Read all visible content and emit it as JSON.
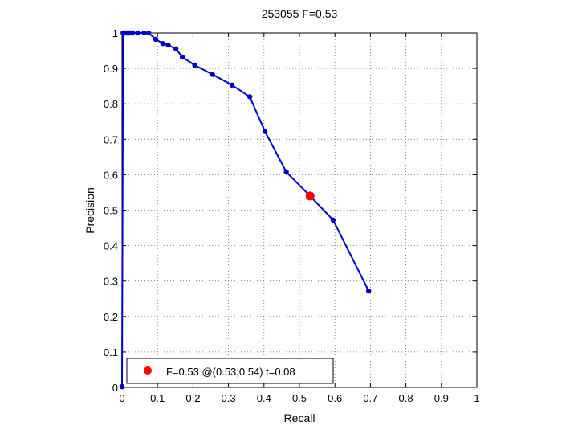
{
  "chart_data": {
    "type": "line",
    "title": "253055 F=0.53",
    "xlabel": "Recall",
    "ylabel": "Precision",
    "xlim": [
      0,
      1
    ],
    "ylim": [
      0,
      1
    ],
    "xticks": [
      "0",
      "0.1",
      "0.2",
      "0.3",
      "0.4",
      "0.5",
      "0.6",
      "0.7",
      "0.8",
      "0.9",
      "1"
    ],
    "yticks": [
      "0",
      "0.1",
      "0.2",
      "0.3",
      "0.4",
      "0.5",
      "0.6",
      "0.7",
      "0.8",
      "0.9",
      "1"
    ],
    "grid": true,
    "series": [
      {
        "color": "#0000cc",
        "x": [
          0,
          0.003,
          0.006,
          0.01,
          0.015,
          0.02,
          0.025,
          0.03,
          0.045,
          0.062,
          0.075,
          0.095,
          0.115,
          0.13,
          0.152,
          0.17,
          0.205,
          0.255,
          0.31,
          0.36,
          0.403,
          0.463,
          0.53,
          0.595,
          0.695
        ],
        "y": [
          0.002,
          1.0,
          1.0,
          1.0,
          1.0,
          1.0,
          1.0,
          1.0,
          1.0,
          1.0,
          1.0,
          0.982,
          0.97,
          0.966,
          0.955,
          0.932,
          0.909,
          0.883,
          0.853,
          0.82,
          0.722,
          0.608,
          0.54,
          0.472,
          0.272
        ]
      }
    ],
    "marker": {
      "x": 0.53,
      "y": 0.54,
      "color": "#ff0000"
    },
    "legend": {
      "position": "bottom-left",
      "text": "F=0.53 @(0.53,0.54) t=0.08"
    }
  }
}
